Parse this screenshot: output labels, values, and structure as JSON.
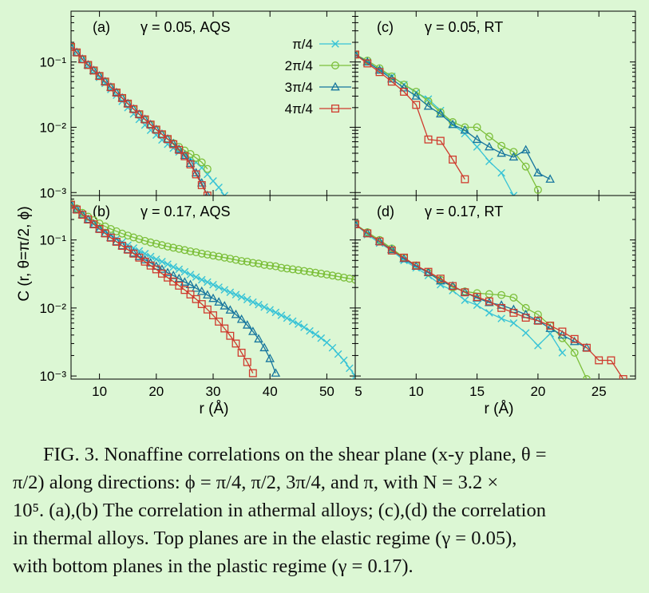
{
  "colors": {
    "pi_4": "#37c3d6",
    "2pi_4": "#7cbf3a",
    "3pi_4": "#17769e",
    "4pi_4": "#cf3b2e",
    "background": "#dcf7d4"
  },
  "figure": {
    "ylabel": "C (r, θ=π/2, ϕ)",
    "xlabel": "r (Å)"
  },
  "legend": [
    {
      "label": "π/4",
      "key": "pi_4",
      "marker": "x"
    },
    {
      "label": "2π/4",
      "key": "2pi_4",
      "marker": "circle"
    },
    {
      "label": "3π/4",
      "key": "3pi_4",
      "marker": "triangle"
    },
    {
      "label": "4π/4",
      "key": "4pi_4",
      "marker": "square"
    }
  ],
  "chart_data": [
    {
      "type": "line",
      "panel": "a",
      "label": "(a)",
      "title": "γ = 0.05, AQS",
      "xlim": [
        5,
        55
      ],
      "ylim": [
        0.0009,
        0.6
      ],
      "yscale": "log",
      "xticks": [],
      "yticks": [
        0.001,
        0.01,
        0.1
      ],
      "ytick_labels": [
        "10⁻³",
        "10⁻²",
        "10⁻¹"
      ],
      "series": [
        {
          "key": "pi_4",
          "x": [
            5,
            6,
            7,
            8,
            9,
            10,
            11,
            12,
            13,
            14,
            15,
            16,
            17,
            18,
            19,
            20,
            21,
            22,
            23,
            24,
            25,
            26,
            27,
            28,
            29,
            30,
            31,
            32
          ],
          "y": [
            0.17,
            0.14,
            0.11,
            0.088,
            0.072,
            0.058,
            0.047,
            0.038,
            0.031,
            0.025,
            0.02,
            0.016,
            0.0132,
            0.0108,
            0.009,
            0.0076,
            0.0064,
            0.0055,
            0.0048,
            0.0042,
            0.0037,
            0.0033,
            0.0029,
            0.0024,
            0.0019,
            0.0015,
            0.0012,
            0.0009
          ]
        },
        {
          "key": "2pi_4",
          "x": [
            5,
            6,
            7,
            8,
            9,
            10,
            11,
            12,
            13,
            14,
            15,
            16,
            17,
            18,
            19,
            20,
            21,
            22,
            23,
            24,
            25,
            26,
            27,
            28,
            29
          ],
          "y": [
            0.17,
            0.14,
            0.11,
            0.09,
            0.074,
            0.061,
            0.05,
            0.041,
            0.034,
            0.028,
            0.023,
            0.019,
            0.0158,
            0.0132,
            0.011,
            0.0092,
            0.0078,
            0.0066,
            0.0057,
            0.005,
            0.0044,
            0.0039,
            0.0034,
            0.0029,
            0.0023
          ]
        },
        {
          "key": "3pi_4",
          "x": [
            5,
            6,
            7,
            8,
            9,
            10,
            11,
            12,
            13,
            14,
            15,
            16,
            17,
            18,
            19,
            20,
            21,
            22,
            23,
            24,
            25,
            26,
            27,
            28,
            29
          ],
          "y": [
            0.17,
            0.14,
            0.11,
            0.09,
            0.074,
            0.061,
            0.05,
            0.041,
            0.034,
            0.028,
            0.023,
            0.019,
            0.0158,
            0.0132,
            0.011,
            0.0092,
            0.0078,
            0.0066,
            0.0056,
            0.0046,
            0.0037,
            0.0028,
            0.002,
            0.0014,
            0.0009
          ]
        },
        {
          "key": "4pi_4",
          "x": [
            5,
            6,
            7,
            8,
            9,
            10,
            11,
            12,
            13,
            14,
            15,
            16,
            17,
            18,
            19,
            20,
            21,
            22,
            23,
            24,
            25,
            26,
            27,
            28,
            29
          ],
          "y": [
            0.17,
            0.14,
            0.11,
            0.09,
            0.074,
            0.061,
            0.05,
            0.041,
            0.034,
            0.028,
            0.023,
            0.019,
            0.0158,
            0.0132,
            0.011,
            0.0092,
            0.0078,
            0.0066,
            0.0055,
            0.0045,
            0.0036,
            0.0027,
            0.0019,
            0.0013,
            0.0009
          ]
        }
      ]
    },
    {
      "type": "line",
      "panel": "b",
      "label": "(b)",
      "title": "γ = 0.17, AQS",
      "xlim": [
        5,
        55
      ],
      "ylim": [
        0.0009,
        0.45
      ],
      "yscale": "log",
      "xticks": [
        10,
        20,
        30,
        40,
        50
      ],
      "yticks": [
        0.001,
        0.01,
        0.1
      ],
      "ytick_labels": [
        "10⁻³",
        "10⁻²",
        "10⁻¹"
      ],
      "series": [
        {
          "key": "pi_4",
          "x": [
            5,
            6,
            7,
            8,
            9,
            10,
            11,
            12,
            13,
            14,
            15,
            16,
            17,
            18,
            19,
            20,
            21,
            22,
            23,
            24,
            25,
            26,
            27,
            28,
            29,
            30,
            31,
            32,
            33,
            34,
            35,
            36,
            37,
            38,
            39,
            40,
            41,
            42,
            43,
            44,
            45,
            46,
            47,
            48,
            49,
            50,
            51,
            52,
            53,
            54,
            55
          ],
          "y": [
            0.33,
            0.28,
            0.235,
            0.2,
            0.172,
            0.15,
            0.132,
            0.117,
            0.104,
            0.093,
            0.084,
            0.076,
            0.069,
            0.063,
            0.057,
            0.052,
            0.048,
            0.044,
            0.04,
            0.037,
            0.034,
            0.031,
            0.0285,
            0.026,
            0.024,
            0.022,
            0.0202,
            0.0185,
            0.017,
            0.0157,
            0.0145,
            0.0133,
            0.0122,
            0.0112,
            0.0103,
            0.0094,
            0.0086,
            0.0078,
            0.0071,
            0.0064,
            0.0058,
            0.0052,
            0.0046,
            0.0041,
            0.0036,
            0.0031,
            0.0026,
            0.0021,
            0.0017,
            0.0013,
            0.001
          ]
        },
        {
          "key": "2pi_4",
          "x": [
            5,
            6,
            7,
            8,
            9,
            10,
            11,
            12,
            13,
            14,
            15,
            16,
            17,
            18,
            19,
            20,
            21,
            22,
            23,
            24,
            25,
            26,
            27,
            28,
            29,
            30,
            31,
            32,
            33,
            34,
            35,
            36,
            37,
            38,
            39,
            40,
            41,
            42,
            43,
            44,
            45,
            46,
            47,
            48,
            49,
            50,
            51,
            52,
            53,
            54,
            55
          ],
          "y": [
            0.34,
            0.29,
            0.25,
            0.22,
            0.195,
            0.175,
            0.158,
            0.145,
            0.134,
            0.124,
            0.116,
            0.109,
            0.103,
            0.097,
            0.092,
            0.088,
            0.084,
            0.08,
            0.077,
            0.074,
            0.071,
            0.068,
            0.066,
            0.063,
            0.061,
            0.059,
            0.057,
            0.055,
            0.053,
            0.051,
            0.049,
            0.048,
            0.046,
            0.045,
            0.043,
            0.042,
            0.041,
            0.039,
            0.038,
            0.037,
            0.036,
            0.035,
            0.034,
            0.033,
            0.032,
            0.031,
            0.03,
            0.029,
            0.028,
            0.027,
            0.026
          ]
        },
        {
          "key": "3pi_4",
          "x": [
            5,
            6,
            7,
            8,
            9,
            10,
            11,
            12,
            13,
            14,
            15,
            16,
            17,
            18,
            19,
            20,
            21,
            22,
            23,
            24,
            25,
            26,
            27,
            28,
            29,
            30,
            31,
            32,
            33,
            34,
            35,
            36,
            37,
            38,
            39,
            40,
            41
          ],
          "y": [
            0.33,
            0.28,
            0.235,
            0.2,
            0.17,
            0.145,
            0.125,
            0.108,
            0.094,
            0.082,
            0.072,
            0.064,
            0.057,
            0.051,
            0.046,
            0.041,
            0.037,
            0.033,
            0.03,
            0.027,
            0.024,
            0.022,
            0.0195,
            0.0175,
            0.0155,
            0.0138,
            0.0122,
            0.0107,
            0.0093,
            0.008,
            0.0068,
            0.0056,
            0.0045,
            0.0035,
            0.0026,
            0.0018,
            0.0011
          ]
        },
        {
          "key": "4pi_4",
          "x": [
            5,
            6,
            7,
            8,
            9,
            10,
            11,
            12,
            13,
            14,
            15,
            16,
            17,
            18,
            19,
            20,
            21,
            22,
            23,
            24,
            25,
            26,
            27,
            28,
            29,
            30,
            31,
            32,
            33,
            34,
            35,
            36,
            37
          ],
          "y": [
            0.33,
            0.28,
            0.235,
            0.2,
            0.17,
            0.145,
            0.125,
            0.108,
            0.094,
            0.082,
            0.072,
            0.063,
            0.055,
            0.048,
            0.042,
            0.037,
            0.032,
            0.028,
            0.0245,
            0.0213,
            0.0184,
            0.0158,
            0.0135,
            0.0114,
            0.0095,
            0.0078,
            0.0063,
            0.005,
            0.0039,
            0.003,
            0.0022,
            0.0016,
            0.0011
          ]
        }
      ]
    },
    {
      "type": "line",
      "panel": "c",
      "label": "(c)",
      "title": "γ = 0.05, RT",
      "xlim": [
        5,
        28
      ],
      "ylim": [
        0.0009,
        0.6
      ],
      "yscale": "log",
      "xticks": [],
      "yticks": [
        0.001,
        0.01,
        0.1
      ],
      "ytick_labels": [],
      "series": [
        {
          "key": "pi_4",
          "x": [
            5,
            6,
            7,
            8,
            9,
            10,
            11,
            12,
            13,
            14,
            15,
            16,
            17,
            18
          ],
          "y": [
            0.13,
            0.1,
            0.075,
            0.06,
            0.045,
            0.034,
            0.027,
            0.018,
            0.011,
            0.008,
            0.005,
            0.003,
            0.002,
            0.0009
          ]
        },
        {
          "key": "2pi_4",
          "x": [
            5,
            6,
            7,
            8,
            9,
            10,
            11,
            12,
            13,
            14,
            15,
            16,
            17,
            18,
            19,
            20
          ],
          "y": [
            0.13,
            0.105,
            0.08,
            0.06,
            0.045,
            0.035,
            0.025,
            0.017,
            0.012,
            0.01,
            0.01,
            0.0072,
            0.0052,
            0.0042,
            0.0025,
            0.0011
          ]
        },
        {
          "key": "3pi_4",
          "x": [
            5,
            6,
            7,
            8,
            9,
            10,
            11,
            12,
            13,
            14,
            15,
            16,
            17,
            18,
            19,
            20,
            21
          ],
          "y": [
            0.13,
            0.1,
            0.075,
            0.055,
            0.04,
            0.03,
            0.021,
            0.016,
            0.011,
            0.009,
            0.0065,
            0.005,
            0.004,
            0.0035,
            0.0045,
            0.002,
            0.0016
          ]
        },
        {
          "key": "4pi_4",
          "x": [
            5,
            6,
            7,
            8,
            9,
            10,
            11,
            12,
            13,
            14
          ],
          "y": [
            0.13,
            0.095,
            0.07,
            0.05,
            0.035,
            0.022,
            0.0065,
            0.0062,
            0.0032,
            0.0016
          ]
        }
      ]
    },
    {
      "type": "line",
      "panel": "d",
      "label": "(d)",
      "title": "γ = 0.17, RT",
      "xlim": [
        5,
        28
      ],
      "ylim": [
        0.0009,
        0.45
      ],
      "yscale": "log",
      "xticks": [
        5,
        10,
        15,
        20,
        25
      ],
      "yticks": [
        0.001,
        0.01,
        0.1
      ],
      "ytick_labels": [],
      "series": [
        {
          "key": "pi_4",
          "x": [
            5,
            6,
            7,
            8,
            9,
            10,
            11,
            12,
            13,
            14,
            15,
            16,
            17,
            18,
            19,
            20,
            21,
            22
          ],
          "y": [
            0.17,
            0.12,
            0.09,
            0.07,
            0.05,
            0.039,
            0.03,
            0.022,
            0.018,
            0.013,
            0.011,
            0.0085,
            0.007,
            0.006,
            0.0043,
            0.0028,
            0.0042,
            0.0022
          ]
        },
        {
          "key": "2pi_4",
          "x": [
            5,
            6,
            7,
            8,
            9,
            10,
            11,
            12,
            13,
            14,
            15,
            16,
            17,
            18,
            19,
            20,
            21,
            22,
            23,
            24
          ],
          "y": [
            0.17,
            0.13,
            0.1,
            0.075,
            0.055,
            0.042,
            0.033,
            0.026,
            0.02,
            0.0175,
            0.0165,
            0.016,
            0.0155,
            0.0142,
            0.01,
            0.008,
            0.0055,
            0.0036,
            0.0022,
            0.0009
          ]
        },
        {
          "key": "3pi_4",
          "x": [
            5,
            6,
            7,
            8,
            9,
            10,
            11,
            12,
            13,
            14,
            15,
            16,
            17,
            18,
            19,
            20,
            21,
            22,
            23,
            24
          ],
          "y": [
            0.17,
            0.125,
            0.095,
            0.072,
            0.053,
            0.041,
            0.033,
            0.025,
            0.021,
            0.017,
            0.014,
            0.012,
            0.011,
            0.0095,
            0.008,
            0.0065,
            0.005,
            0.004,
            0.0032,
            0.0026
          ]
        },
        {
          "key": "4pi_4",
          "x": [
            5,
            6,
            7,
            8,
            9,
            10,
            11,
            12,
            13,
            14,
            15,
            16,
            17,
            18,
            19,
            20,
            21,
            22,
            23,
            24,
            25,
            26,
            27
          ],
          "y": [
            0.17,
            0.125,
            0.095,
            0.07,
            0.055,
            0.042,
            0.034,
            0.027,
            0.021,
            0.017,
            0.0145,
            0.0125,
            0.01,
            0.0085,
            0.0072,
            0.0065,
            0.0055,
            0.0045,
            0.0035,
            0.0026,
            0.0017,
            0.0017,
            0.0009
          ]
        }
      ]
    }
  ],
  "caption": {
    "line1": "FIG. 3.  Nonaffine correlations on the shear plane (x-y plane, θ =",
    "line2": "π/2) along directions: ϕ = π/4, π/2, 3π/4, and π, with N = 3.2 ×",
    "line3": "10⁵. (a),(b) The correlation in athermal alloys; (c),(d) the correlation",
    "line4": "in thermal alloys. Top planes are in the elastic regime (γ = 0.05),",
    "line5": "with bottom planes in the plastic regime (γ = 0.17)."
  }
}
